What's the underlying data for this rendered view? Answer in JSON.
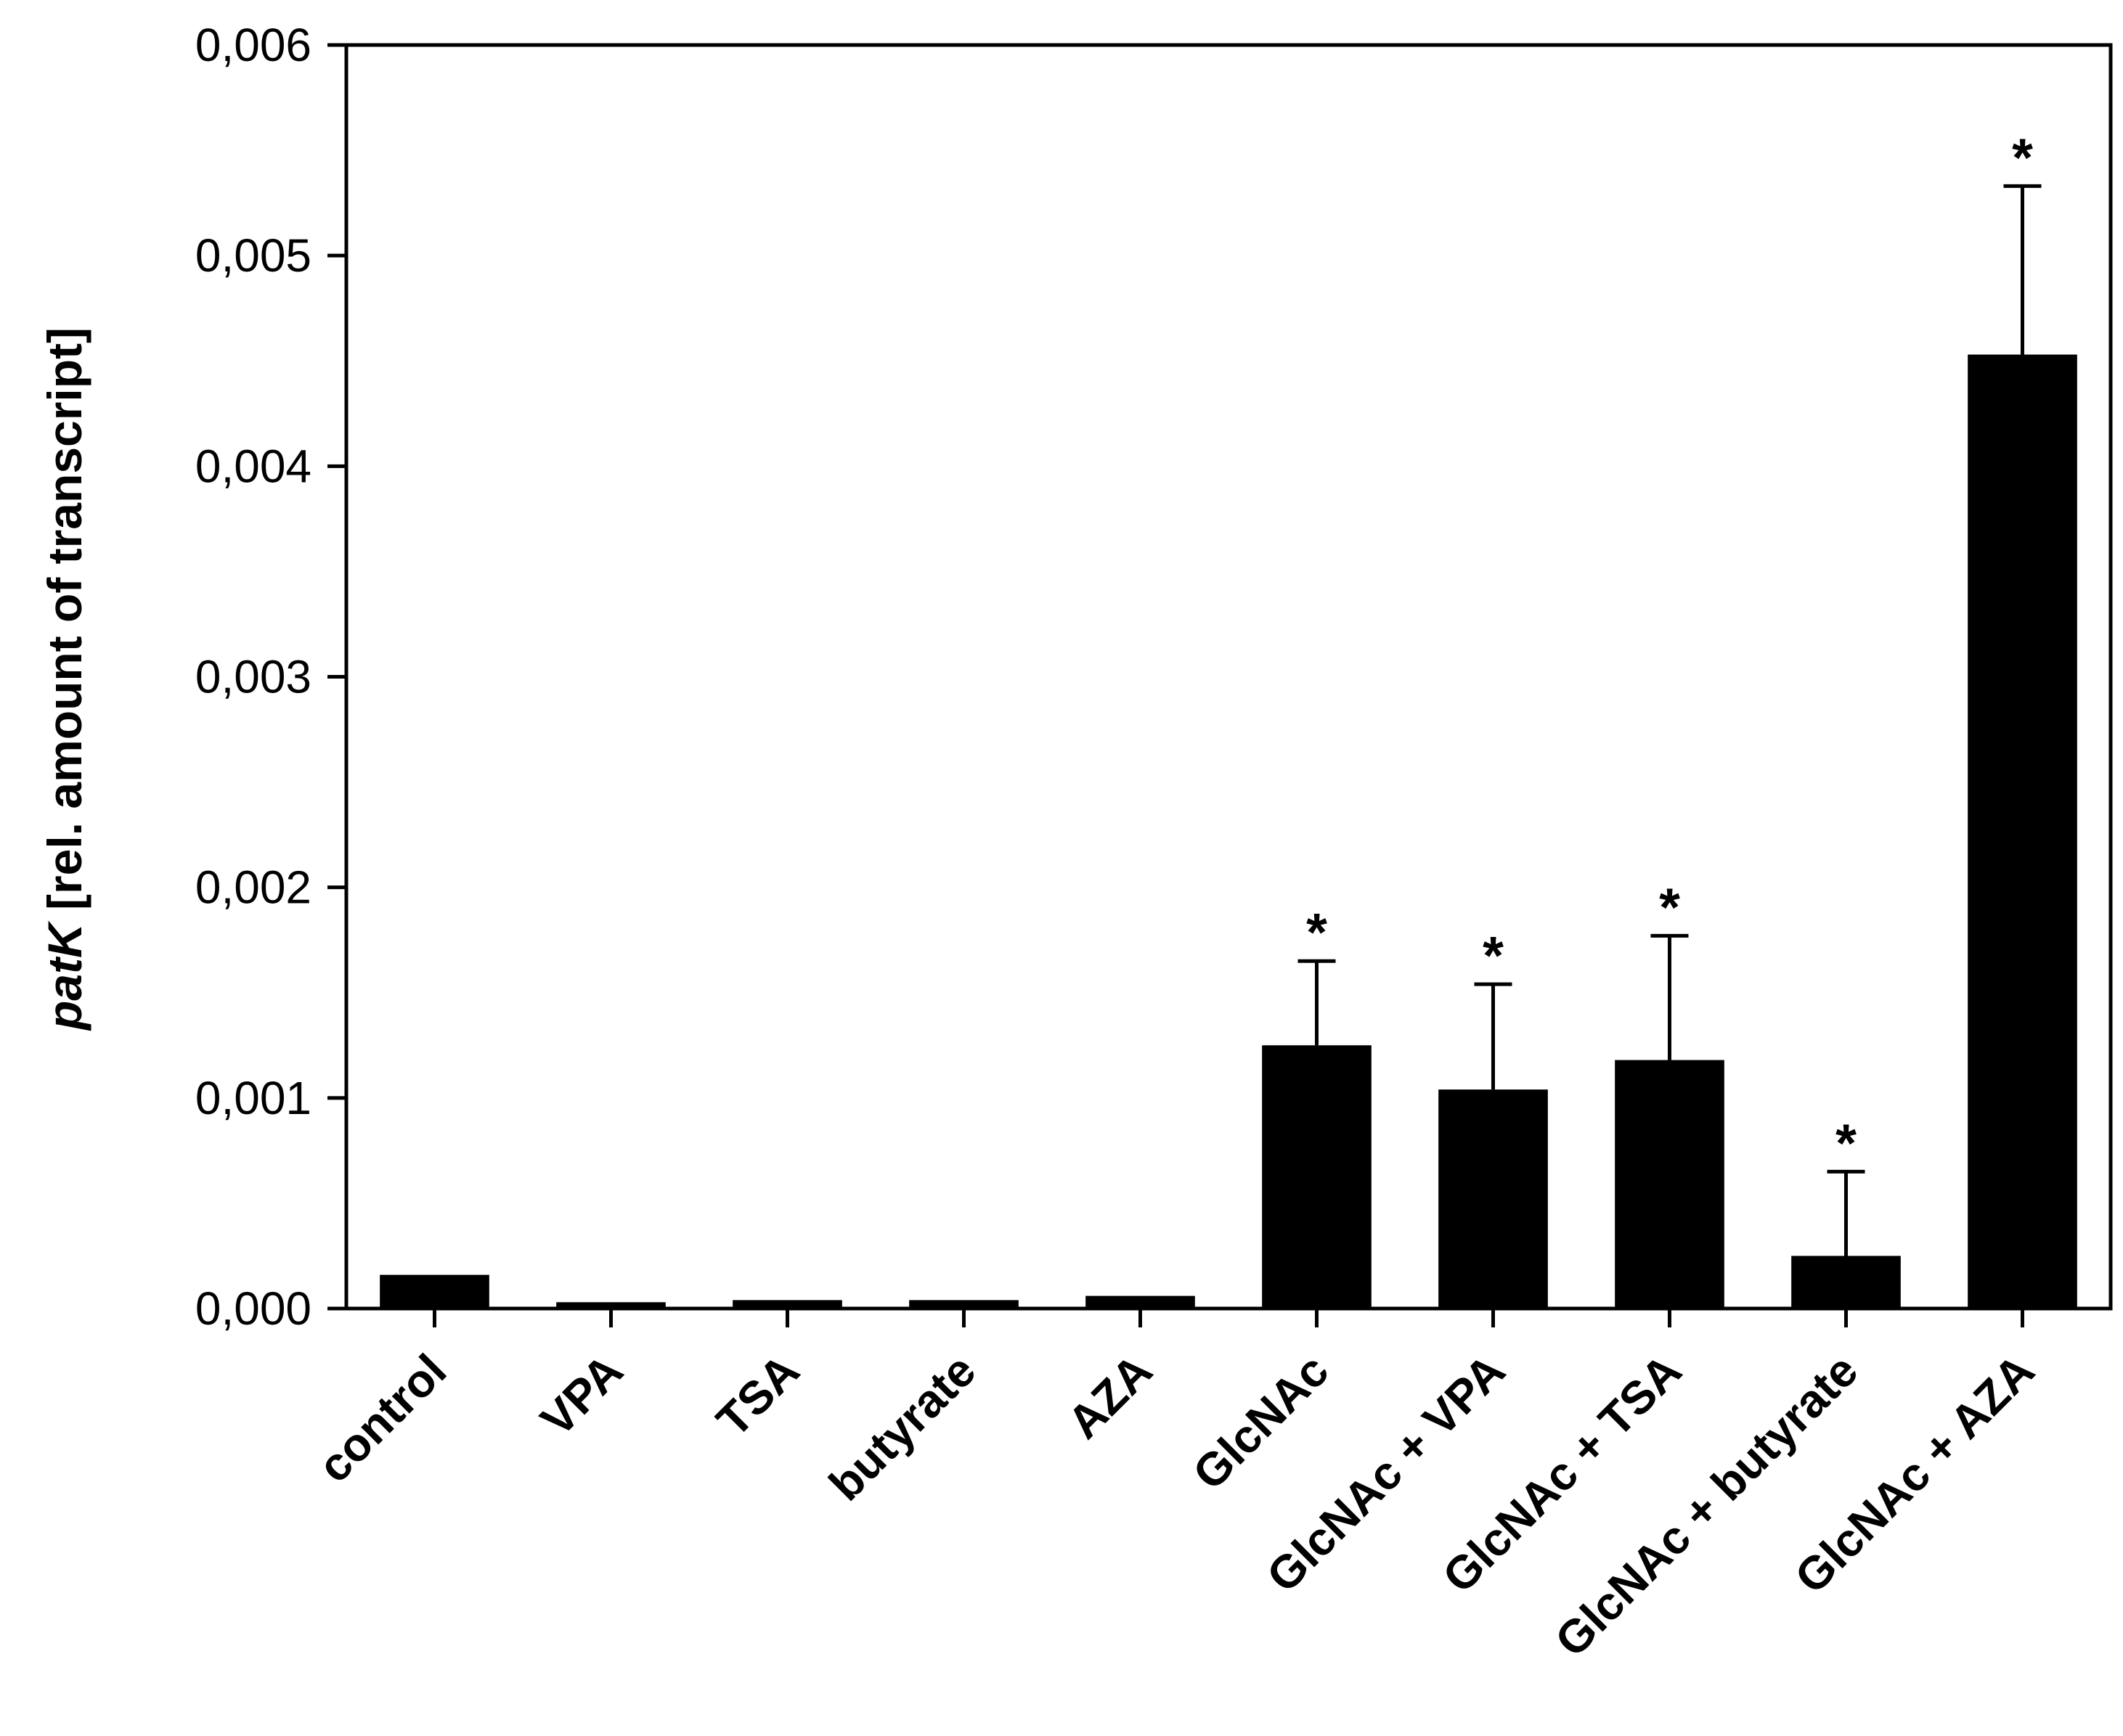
{
  "chart_data": {
    "type": "bar",
    "categories": [
      "control",
      "VPA",
      "TSA",
      "butyrate",
      "AZA",
      "GlcNAc",
      "GlcNAc + VPA",
      "GlcNAc + TSA",
      "GlcNAc + butyrate",
      "GlcNAc + AZA"
    ],
    "values": [
      0.00016,
      3e-05,
      4e-05,
      4e-05,
      6e-05,
      0.00125,
      0.00104,
      0.00118,
      0.00025,
      0.00453
    ],
    "error_upper": [
      0,
      0,
      0,
      0,
      0,
      0.00165,
      0.00154,
      0.00177,
      0.00065,
      0.00533
    ],
    "significant": [
      false,
      false,
      false,
      false,
      false,
      true,
      true,
      true,
      true,
      true
    ],
    "significance_marker": "*",
    "ylabel_italic": "patK",
    "ylabel_rest": " [rel. amount of transcript]",
    "ylim": [
      0,
      0.006
    ],
    "yticks": [
      0,
      0.001,
      0.002,
      0.003,
      0.004,
      0.005,
      0.006
    ],
    "ytick_labels": [
      "0,000",
      "0,001",
      "0,002",
      "0,003",
      "0,004",
      "0,005",
      "0,006"
    ],
    "bar_color": "#000000",
    "grid": false,
    "legend": "none"
  }
}
